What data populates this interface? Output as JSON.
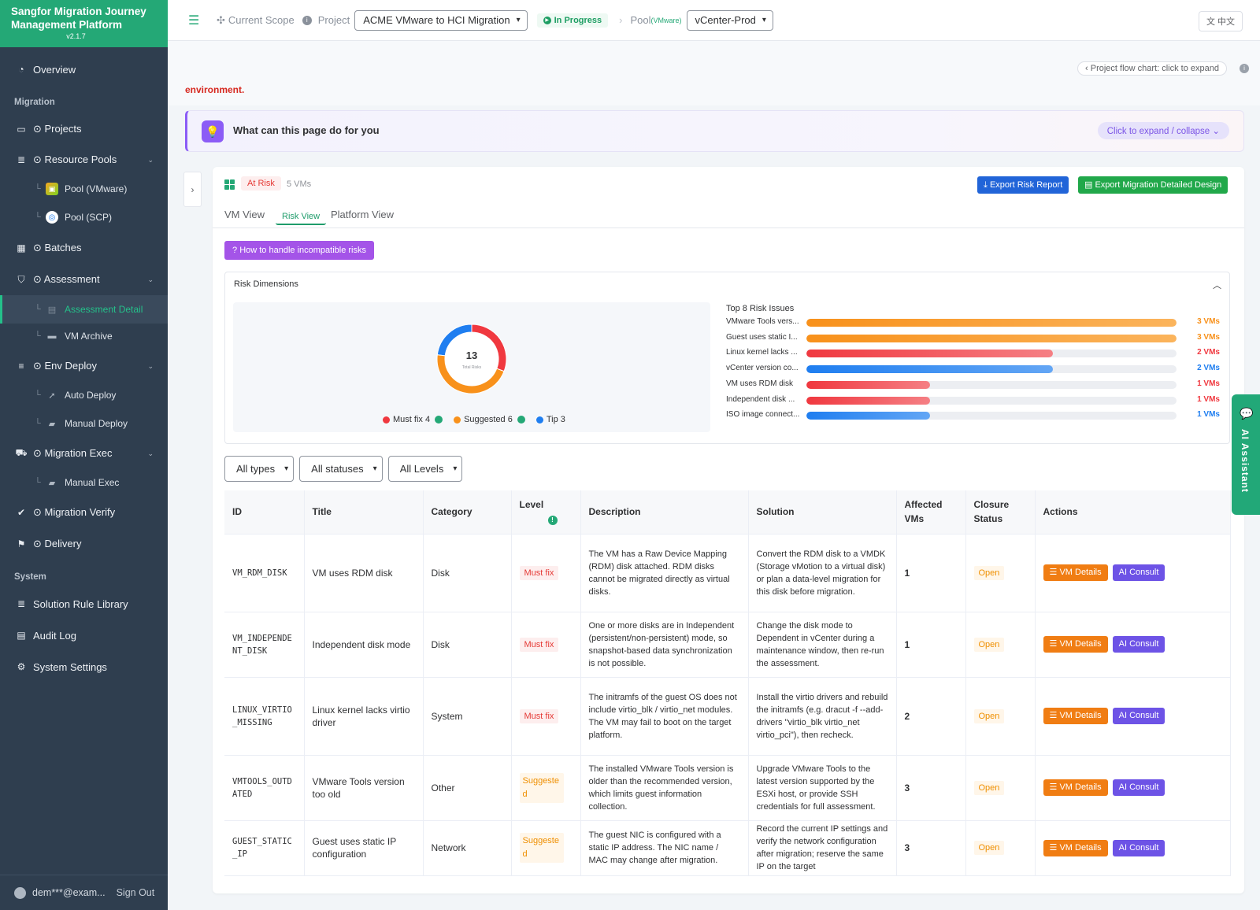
{
  "app": {
    "title": "Sangfor Migration Journey Management Platform",
    "version": "v2.1.7"
  },
  "sidebar": {
    "overview": "Overview",
    "section_migration": "Migration",
    "projects": "⊙ Projects",
    "resource_pools": "⊙ Resource Pools",
    "pool_vmware": "Pool (VMware)",
    "pool_scp": "Pool (SCP)",
    "batches": "⊙ Batches",
    "assessment": "⊙ Assessment",
    "assessment_detail": "Assessment Detail",
    "vm_archive": "VM Archive",
    "env_deploy": "⊙ Env Deploy",
    "auto_deploy": "Auto Deploy",
    "manual_deploy": "Manual Deploy",
    "migration_exec": "⊙ Migration Exec",
    "manual_exec": "Manual Exec",
    "migration_verify": "⊙ Migration Verify",
    "delivery": "⊙ Delivery",
    "section_system": "System",
    "solution_rule_library": "Solution Rule Library",
    "audit_log": "Audit Log",
    "system_settings": "System Settings",
    "user": "dem***@exam...",
    "sign_out": "Sign Out"
  },
  "topbar": {
    "current_scope": "Current Scope",
    "project_label": "Project",
    "project_value": "ACME VMware to HCI Migration",
    "status": "In Progress",
    "pool_label": "Pool",
    "pool_type": "(VMware)",
    "pool_value": "vCenter-Prod",
    "lang": "中文"
  },
  "subhead": {
    "flow_chart": "‹ Project flow chart: click to expand",
    "env_text": "environment."
  },
  "help": {
    "title": "What can this page do for you",
    "expand": "Click to expand / collapse"
  },
  "card": {
    "badge": "At Risk",
    "vm_count": "5 VMs",
    "export_risk": "Export Risk Report",
    "export_design": "Export Migration Detailed Design",
    "tabs": [
      "VM View",
      "Risk View",
      "Platform View"
    ],
    "active_tab": "Risk View",
    "how_btn": "How to handle incompatible risks"
  },
  "risk": {
    "title": "Risk Dimensions",
    "total": "13",
    "total_label": "Total Risks",
    "legend": [
      {
        "label": "Must fix 4",
        "color": "#f0383f",
        "value": 4
      },
      {
        "label": "Suggested 6",
        "color": "#f8911b",
        "value": 6
      },
      {
        "label": "Tip 3",
        "color": "#1f7ef0",
        "value": 3
      }
    ],
    "top_title": "Top 8 Risk Issues",
    "top_max": 3,
    "top": [
      {
        "label": "VMware Tools vers...",
        "value": 3,
        "text": "3 VMs",
        "color": "#f8911b",
        "fade": "#fbb45c"
      },
      {
        "label": "Guest uses static I...",
        "value": 3,
        "text": "3 VMs",
        "color": "#f8911b",
        "fade": "#fbb45c"
      },
      {
        "label": "Linux kernel lacks ...",
        "value": 2,
        "text": "2 VMs",
        "color": "#f0383f",
        "fade": "#f57f84"
      },
      {
        "label": "vCenter version co...",
        "value": 2,
        "text": "2 VMs",
        "color": "#1f7ef0",
        "fade": "#63a6f5"
      },
      {
        "label": "VM uses RDM disk",
        "value": 1,
        "text": "1 VMs",
        "color": "#f0383f",
        "fade": "#f57f84"
      },
      {
        "label": "Independent disk ...",
        "value": 1,
        "text": "1 VMs",
        "color": "#f0383f",
        "fade": "#f57f84"
      },
      {
        "label": "ISO image connect...",
        "value": 1,
        "text": "1 VMs",
        "color": "#1f7ef0",
        "fade": "#63a6f5"
      }
    ]
  },
  "filters": [
    "All types",
    "All statuses",
    "All Levels"
  ],
  "table": {
    "headers": [
      "ID",
      "Title",
      "Category",
      "Level",
      "Description",
      "Solution",
      "Affected VMs",
      "Closure Status",
      "Actions"
    ],
    "vm_details": "VM Details",
    "ai_consult": "AI Consult",
    "rows": [
      {
        "id": "VM_RDM_DISK",
        "title": "VM uses RDM disk",
        "category": "Disk",
        "level": "Must fix",
        "level_type": "must",
        "description": "The VM has a Raw Device Mapping (RDM) disk attached. RDM disks cannot be migrated directly as virtual disks.",
        "solution": "Convert the RDM disk to a VMDK (Storage vMotion to a virtual disk) or plan a data-level migration for this disk before migration.",
        "affected": "1",
        "status": "Open"
      },
      {
        "id": "VM_INDEPENDENT_DISK",
        "title": "Independent disk mode",
        "category": "Disk",
        "level": "Must fix",
        "level_type": "must",
        "description": "One or more disks are in Independent (persistent/non-persistent) mode, so snapshot-based data synchronization is not possible.",
        "solution": "Change the disk mode to Dependent in vCenter during a maintenance window, then re-run the assessment.",
        "affected": "1",
        "status": "Open"
      },
      {
        "id": "LINUX_VIRTIO_MISSING",
        "title": "Linux kernel lacks virtio driver",
        "category": "System",
        "level": "Must fix",
        "level_type": "must",
        "description": "The initramfs of the guest OS does not include virtio_blk / virtio_net modules. The VM may fail to boot on the target platform.",
        "solution": "Install the virtio drivers and rebuild the initramfs (e.g. dracut -f --add-drivers \"virtio_blk virtio_net virtio_pci\"), then recheck.",
        "affected": "2",
        "status": "Open"
      },
      {
        "id": "VMTOOLS_OUTDATED",
        "title": "VMware Tools version too old",
        "category": "Other",
        "level": "Suggested",
        "level_type": "sug",
        "description": "The installed VMware Tools version is older than the recommended version, which limits guest information collection.",
        "solution": "Upgrade VMware Tools to the latest version supported by the ESXi host, or provide SSH credentials for full assessment.",
        "affected": "3",
        "status": "Open"
      },
      {
        "id": "GUEST_STATIC_IP",
        "title": "Guest uses static IP configuration",
        "category": "Network",
        "level": "Suggested",
        "level_type": "sug",
        "description": "The guest NIC is configured with a static IP address. The NIC name / MAC may change after migration.",
        "solution": "Record the current IP settings and verify the network configuration after migration; reserve the same IP on the target",
        "affected": "3",
        "status": "Open"
      }
    ]
  },
  "ai_assistant": "AI Assistant",
  "colors": {
    "brand": "#24a876",
    "sidebar": "#2f3e4f",
    "accent_purple": "#8b5cf6"
  }
}
